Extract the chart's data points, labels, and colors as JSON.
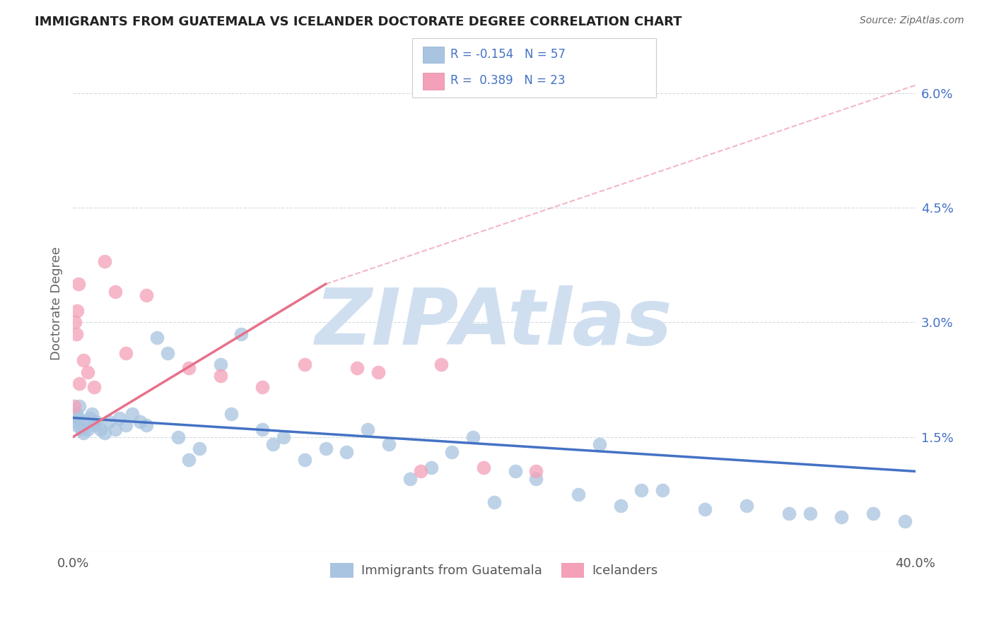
{
  "title": "IMMIGRANTS FROM GUATEMALA VS ICELANDER DOCTORATE DEGREE CORRELATION CHART",
  "source": "Source: ZipAtlas.com",
  "ylabel": "Doctorate Degree",
  "y_ticks": [
    0.0,
    1.5,
    3.0,
    4.5,
    6.0
  ],
  "y_tick_labels": [
    "",
    "1.5%",
    "3.0%",
    "4.5%",
    "6.0%"
  ],
  "x_range": [
    0.0,
    40.0
  ],
  "y_range": [
    0.0,
    6.5
  ],
  "series1_label": "Immigrants from Guatemala",
  "series1_color": "#a8c4e0",
  "series1_line_color": "#4472c4",
  "series1_R": -0.154,
  "series1_N": 57,
  "series2_label": "Icelanders",
  "series2_color": "#f4a0b8",
  "series2_line_color": "#e8708a",
  "series2_R": 0.389,
  "series2_N": 23,
  "legend_R_color": "#4472c4",
  "background_color": "#ffffff",
  "watermark": "ZIPAtlas",
  "watermark_color": "#d0dff0",
  "guatemala_x": [
    0.1,
    0.15,
    0.2,
    0.25,
    0.3,
    0.4,
    0.5,
    0.6,
    0.7,
    0.8,
    0.9,
    1.0,
    1.1,
    1.3,
    1.5,
    1.7,
    2.0,
    2.2,
    2.5,
    2.8,
    3.2,
    3.5,
    4.0,
    4.5,
    5.0,
    5.5,
    6.0,
    7.0,
    7.5,
    8.0,
    9.0,
    9.5,
    10.0,
    11.0,
    12.0,
    13.0,
    14.0,
    15.0,
    16.0,
    17.0,
    18.0,
    19.0,
    20.0,
    21.0,
    22.0,
    24.0,
    25.0,
    26.0,
    27.0,
    28.0,
    30.0,
    32.0,
    34.0,
    35.0,
    36.5,
    38.0,
    39.5
  ],
  "guatemala_y": [
    1.7,
    1.8,
    1.65,
    1.75,
    1.9,
    1.6,
    1.55,
    1.7,
    1.6,
    1.75,
    1.8,
    1.65,
    1.7,
    1.6,
    1.55,
    1.7,
    1.6,
    1.75,
    1.65,
    1.8,
    1.7,
    1.65,
    2.8,
    2.6,
    1.5,
    1.2,
    1.35,
    2.45,
    1.8,
    2.85,
    1.6,
    1.4,
    1.5,
    1.2,
    1.35,
    1.3,
    1.6,
    1.4,
    0.95,
    1.1,
    1.3,
    1.5,
    0.65,
    1.05,
    0.95,
    0.75,
    1.4,
    0.6,
    0.8,
    0.8,
    0.55,
    0.6,
    0.5,
    0.5,
    0.45,
    0.5,
    0.4
  ],
  "iceland_x": [
    0.05,
    0.1,
    0.15,
    0.2,
    0.25,
    0.3,
    0.5,
    0.7,
    1.0,
    1.5,
    2.0,
    2.5,
    3.5,
    5.5,
    7.0,
    9.0,
    11.0,
    13.5,
    14.5,
    16.5,
    17.5,
    19.5,
    22.0
  ],
  "iceland_y": [
    1.9,
    3.0,
    2.85,
    3.15,
    3.5,
    2.2,
    2.5,
    2.35,
    2.15,
    3.8,
    3.4,
    2.6,
    3.35,
    2.4,
    2.3,
    2.15,
    2.45,
    2.4,
    2.35,
    1.05,
    2.45,
    1.1,
    1.05
  ],
  "trend1_x0": 0.0,
  "trend1_y0": 1.75,
  "trend1_x1": 40.0,
  "trend1_y1": 1.05,
  "trend2_x0": 0.0,
  "trend2_y0": 1.5,
  "trend2_x1": 12.0,
  "trend2_y1": 3.5,
  "trend2_dashed_x0": 12.0,
  "trend2_dashed_y0": 3.5,
  "trend2_dashed_x1": 40.0,
  "trend2_dashed_y1": 6.1
}
